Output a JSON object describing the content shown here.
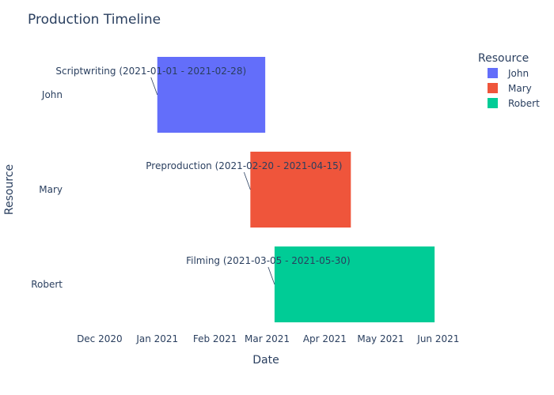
{
  "chart_data": {
    "type": "gantt",
    "title": "Production Timeline",
    "xlabel": "Date",
    "ylabel": "Resource",
    "legend_title": "Resource",
    "legend_position": "top-right",
    "grid": false,
    "x_range": [
      "2020-11-20",
      "2021-06-10"
    ],
    "x_ticks": [
      {
        "date": "2020-12-01",
        "label": "Dec 2020"
      },
      {
        "date": "2021-01-01",
        "label": "Jan 2021"
      },
      {
        "date": "2021-02-01",
        "label": "Feb 2021"
      },
      {
        "date": "2021-03-01",
        "label": "Mar 2021"
      },
      {
        "date": "2021-04-01",
        "label": "Apr 2021"
      },
      {
        "date": "2021-05-01",
        "label": "May 2021"
      },
      {
        "date": "2021-06-01",
        "label": "Jun 2021"
      }
    ],
    "categories": [
      "John",
      "Mary",
      "Robert"
    ],
    "tasks": [
      {
        "resource": "John",
        "start": "2021-01-01",
        "end": "2021-02-28",
        "color": "#636efa",
        "annotation": "Scriptwriting (2021-01-01 - 2021-02-28)"
      },
      {
        "resource": "Mary",
        "start": "2021-02-20",
        "end": "2021-04-15",
        "color": "#ef553b",
        "annotation": "Preproduction (2021-02-20 - 2021-04-15)"
      },
      {
        "resource": "Robert",
        "start": "2021-03-05",
        "end": "2021-05-30",
        "color": "#00cc96",
        "annotation": "Filming (2021-03-05 - 2021-05-30)"
      }
    ]
  }
}
